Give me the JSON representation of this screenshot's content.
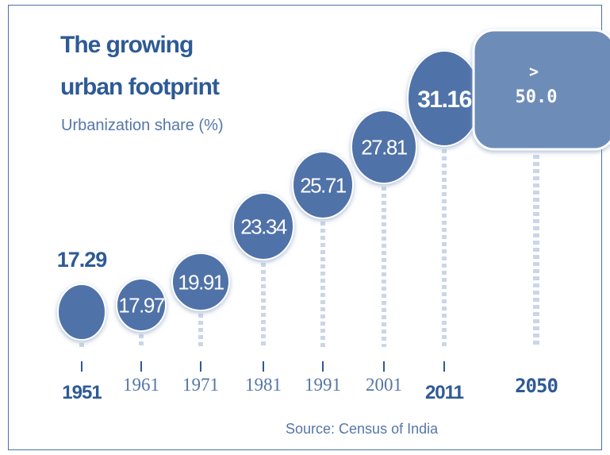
{
  "title_line1": "The growing",
  "title_line2": "urban footprint",
  "subtitle": "Urbanization share (%)",
  "source": "Source: Census of India",
  "colors": {
    "bubble": "#4f72a8",
    "text_dark": "#2e5a96",
    "text_light": "#5576a8",
    "stem": "#c9d6e8",
    "highlight_box": "#6d8cb8"
  },
  "chart_data": {
    "type": "scatter",
    "title": "The growing urban footprint",
    "ylabel": "Urbanization share (%)",
    "categories": [
      "1951",
      "1961",
      "1971",
      "1981",
      "1991",
      "2001",
      "2011",
      "2050"
    ],
    "values": [
      17.29,
      17.97,
      19.91,
      23.34,
      25.71,
      27.81,
      31.16,
      50.0
    ],
    "value_labels": [
      "17.29",
      "17.97",
      "19.91",
      "23.34",
      "25.71",
      "27.81",
      "31.16",
      "> 50.0"
    ],
    "bold_years": [
      "1951",
      "2011",
      "2050"
    ]
  }
}
